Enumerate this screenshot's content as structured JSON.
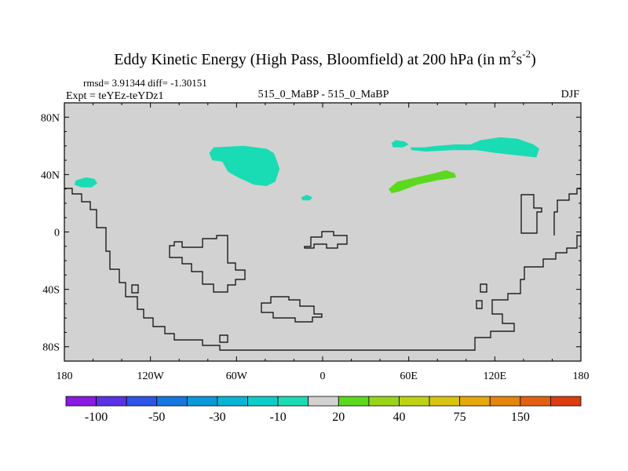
{
  "chart_data": {
    "type": "contour-map",
    "title": {
      "main": "Eddy Kinetic Energy (High Pass, Bloomfield) at 200 hPa (in m",
      "exp1": "2",
      "mid": "s",
      "exp2": "-2",
      "end": ")"
    },
    "stats": "rmsd= 3.91344 diff= -1.30151",
    "expt": "Expt = teYEz-teYDz1",
    "comparison": "515_0_MaBP - 515_0_MaBP",
    "season": "DJF",
    "xlim": [
      -180,
      180
    ],
    "ylim": [
      -90,
      90
    ],
    "x_ticks": [
      {
        "value": -180,
        "label": "180"
      },
      {
        "value": -120,
        "label": "120W"
      },
      {
        "value": -60,
        "label": "60W"
      },
      {
        "value": 0,
        "label": "0"
      },
      {
        "value": 60,
        "label": "60E"
      },
      {
        "value": 120,
        "label": "120E"
      },
      {
        "value": 180,
        "label": "180"
      }
    ],
    "y_ticks": [
      {
        "value": 80,
        "label": "80N"
      },
      {
        "value": 40,
        "label": "40N"
      },
      {
        "value": 0,
        "label": "0"
      },
      {
        "value": -40,
        "label": "40S"
      },
      {
        "value": -80,
        "label": "80S"
      }
    ],
    "background_color": "#d2d2d2",
    "colorbar": {
      "colors": [
        "#8a1be0",
        "#5a32e6",
        "#2f55e6",
        "#1478e0",
        "#0a9ad8",
        "#0ab4d4",
        "#0ecdc8",
        "#1adcb4",
        "#d2d2d2",
        "#5cd91e",
        "#98d41a",
        "#bed214",
        "#d8c40e",
        "#e6a80c",
        "#e6840c",
        "#e26012",
        "#dc3c10"
      ],
      "labels": [
        {
          "boundary": 1,
          "text": "-100"
        },
        {
          "boundary": 3,
          "text": "-50"
        },
        {
          "boundary": 5,
          "text": "-30"
        },
        {
          "boundary": 7,
          "text": "-10"
        },
        {
          "boundary": 9,
          "text": "20"
        },
        {
          "boundary": 11,
          "text": "40"
        },
        {
          "boundary": 13,
          "text": "75"
        },
        {
          "boundary": 15,
          "text": "150"
        }
      ]
    },
    "regions": [
      {
        "name": "north-pacific-negative",
        "value_range": "-10 to 0",
        "color": "#1adcb4",
        "outline": [
          [
            -172,
            36
          ],
          [
            -165,
            38
          ],
          [
            -159,
            37
          ],
          [
            -157,
            34
          ],
          [
            -161,
            31
          ],
          [
            -168,
            31
          ],
          [
            -173,
            33
          ]
        ]
      },
      {
        "name": "north-atlantic-negative",
        "value_range": "-10 to 0",
        "color": "#1adcb4",
        "outline": [
          [
            -79,
            55
          ],
          [
            -76,
            59
          ],
          [
            -55,
            60
          ],
          [
            -39,
            58
          ],
          [
            -34,
            55
          ],
          [
            -32,
            50
          ],
          [
            -30,
            44
          ],
          [
            -33,
            35
          ],
          [
            -39,
            32
          ],
          [
            -48,
            33
          ],
          [
            -59,
            38
          ],
          [
            -66,
            42
          ],
          [
            -70,
            49
          ],
          [
            -77,
            50
          ]
        ]
      },
      {
        "name": "atlantic-small-negative",
        "value_range": "-10 to 0",
        "color": "#1adcb4",
        "outline": [
          [
            -15,
            24
          ],
          [
            -11,
            26
          ],
          [
            -7,
            24
          ],
          [
            -9,
            22
          ],
          [
            -14,
            22
          ]
        ]
      },
      {
        "name": "eurasia-negative-west",
        "value_range": "-10 to 0",
        "color": "#1adcb4",
        "outline": [
          [
            48,
            62
          ],
          [
            51,
            64
          ],
          [
            57,
            63
          ],
          [
            60,
            61
          ],
          [
            56,
            59
          ],
          [
            49,
            59
          ]
        ]
      },
      {
        "name": "eurasia-negative-east",
        "value_range": "-10 to 0",
        "color": "#1adcb4",
        "outline": [
          [
            61,
            59
          ],
          [
            70,
            59
          ],
          [
            80,
            60
          ],
          [
            92,
            61
          ],
          [
            103,
            61
          ],
          [
            110,
            64
          ],
          [
            124,
            66
          ],
          [
            136,
            65
          ],
          [
            147,
            61
          ],
          [
            151,
            58
          ],
          [
            149,
            52
          ],
          [
            139,
            53
          ],
          [
            121,
            55
          ],
          [
            107,
            57
          ],
          [
            90,
            57
          ],
          [
            72,
            56
          ],
          [
            62,
            57
          ]
        ]
      },
      {
        "name": "asia-positive",
        "value_range": "0 to 20",
        "color": "#5cd91e",
        "outline": [
          [
            46,
            30
          ],
          [
            52,
            35
          ],
          [
            65,
            38
          ],
          [
            78,
            41
          ],
          [
            86,
            43
          ],
          [
            92,
            41
          ],
          [
            93,
            38
          ],
          [
            80,
            36
          ],
          [
            66,
            33
          ],
          [
            53,
            28
          ],
          [
            48,
            27
          ]
        ]
      }
    ],
    "coastline_note": "outline of land/sea mask"
  }
}
